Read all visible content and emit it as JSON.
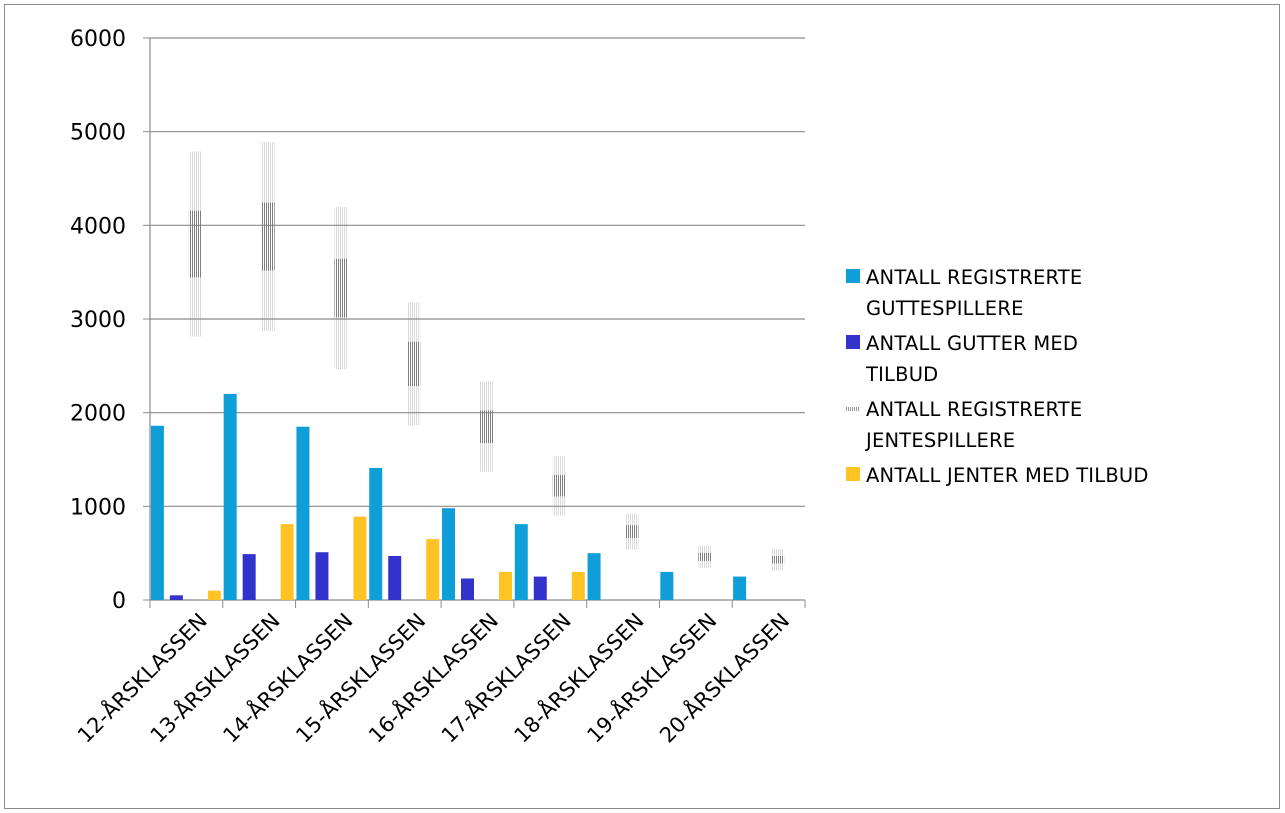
{
  "chart_data": {
    "type": "bar",
    "title": "",
    "xlabel": "",
    "ylabel": "",
    "ylim": [
      0,
      6000
    ],
    "yticks": [
      0,
      1000,
      2000,
      3000,
      4000,
      5000,
      6000
    ],
    "grid": true,
    "legend_position": "right",
    "categories": [
      "12-ÅRSKLASSEN",
      "13-ÅRSKLASSEN",
      "14-ÅRSKLASSEN",
      "15-ÅRSKLASSEN",
      "16-ÅRSKLASSEN",
      "17-ÅRSKLASSEN",
      "18-ÅRSKLASSEN",
      "19-ÅRSKLASSEN",
      "20-ÅRSKLASSEN"
    ],
    "series": [
      {
        "name": "ANTALL REGISTRERTE GUTTESPILLERE",
        "color": "#0f9ed8",
        "values": [
          1860,
          2200,
          1850,
          1410,
          980,
          810,
          500,
          300,
          250
        ]
      },
      {
        "name": "ANTALL GUTTER MED TILBUD",
        "color": "#3333cc",
        "values": [
          50,
          490,
          510,
          470,
          230,
          250,
          0,
          0,
          0
        ]
      },
      {
        "name": "ANTALL REGISTRERTE JENTESPILLERE",
        "color": "#8c8c8c",
        "values": [
          3800,
          3880,
          3330,
          2520,
          1850,
          1220,
          730,
          460,
          430
        ]
      },
      {
        "name": "ANTALL JENTER MED TILBUD",
        "color": "#ffc424",
        "values": [
          100,
          810,
          890,
          650,
          300,
          300,
          0,
          0,
          0
        ]
      }
    ]
  },
  "legend": {
    "items": [
      {
        "label_line1": "ANTALL REGISTRERTE",
        "label_line2": "GUTTESPILLERE"
      },
      {
        "label_line1": "ANTALL GUTTER MED",
        "label_line2": "TILBUD"
      },
      {
        "label_line1": "ANTALL REGISTRERTE",
        "label_line2": "JENTESPILLERE"
      },
      {
        "label_line1": "ANTALL JENTER MED TILBUD",
        "label_line2": ""
      }
    ]
  }
}
